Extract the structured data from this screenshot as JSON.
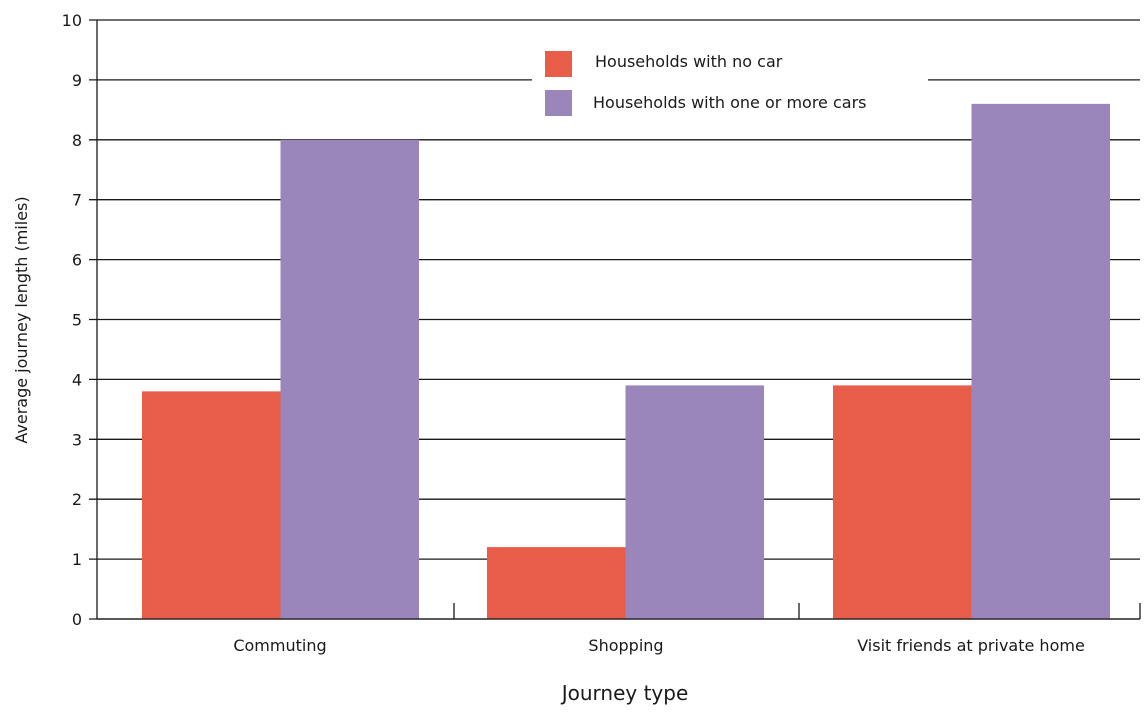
{
  "chart_data": {
    "type": "bar",
    "categories": [
      "Commuting",
      "Shopping",
      "Visit friends at private home"
    ],
    "series": [
      {
        "name": "Households with no car",
        "values": [
          3.8,
          1.2,
          3.9
        ],
        "color": "#e85c4a"
      },
      {
        "name": "Households with one or more cars",
        "values": [
          8.0,
          3.9,
          8.6
        ],
        "color": "#9b86bb"
      }
    ],
    "title": "",
    "xlabel": "Journey type",
    "ylabel": "Average journey length (miles)",
    "ylim": [
      0,
      10
    ],
    "yticks": [
      0,
      1,
      2,
      3,
      4,
      5,
      6,
      7,
      8,
      9,
      10
    ],
    "grid": true,
    "legend_position": "top-center"
  }
}
